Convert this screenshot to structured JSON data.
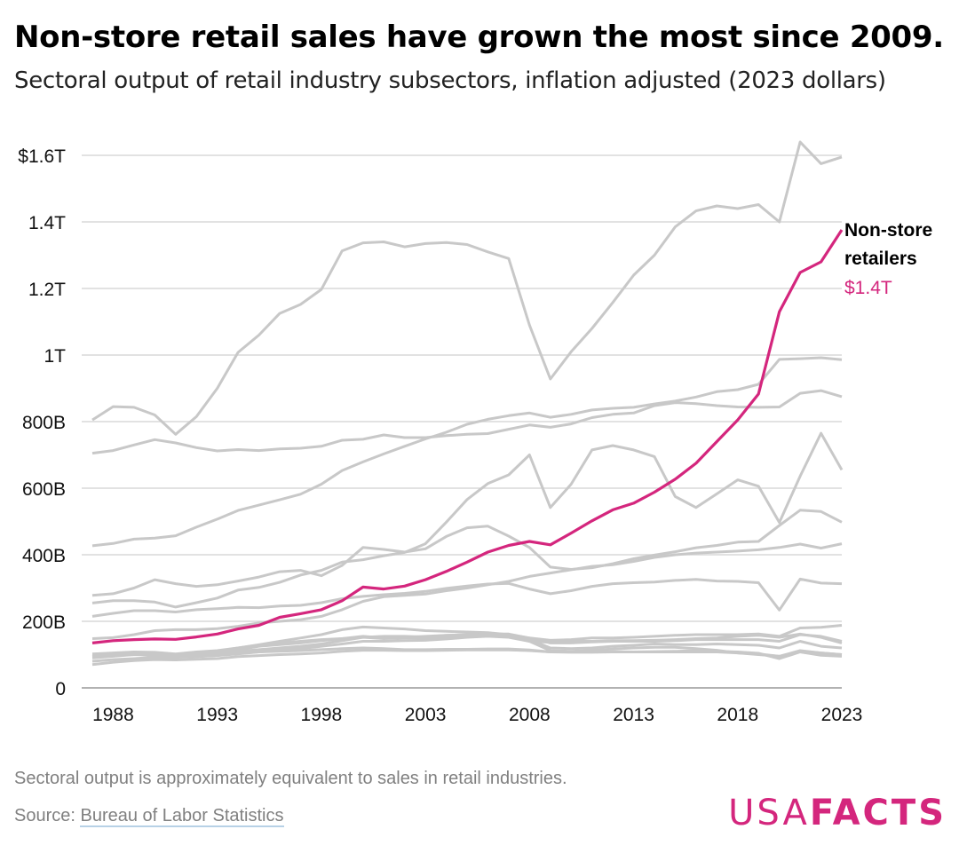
{
  "title": "Non-store retail sales have grown the most since 2009.",
  "subtitle": "Sectoral output of retail industry subsectors, inflation adjusted (2023 dollars)",
  "note": "Sectoral output is approximately equivalent to sales in retail industries.",
  "source_prefix": "Source: ",
  "source_link": "Bureau of Labor Statistics",
  "logo": {
    "light": "USA",
    "bold": "FACTS"
  },
  "annotation": {
    "line1": "Non-store",
    "line2": "retailers",
    "value": "$1.4T"
  },
  "colors": {
    "highlight": "#d4267d",
    "other": "#c8c8c8",
    "grid": "#d9d9d9"
  },
  "chart_data": {
    "type": "line",
    "ylim": [
      0,
      1600
    ],
    "y_unit": "billions of 2023 dollars",
    "yticks": [
      {
        "v": 0,
        "label": "0"
      },
      {
        "v": 200,
        "label": "200B"
      },
      {
        "v": 400,
        "label": "400B"
      },
      {
        "v": 600,
        "label": "600B"
      },
      {
        "v": 800,
        "label": "800B"
      },
      {
        "v": 1000,
        "label": "1T"
      },
      {
        "v": 1200,
        "label": "1.2T"
      },
      {
        "v": 1400,
        "label": "1.4T"
      },
      {
        "v": 1600,
        "label": "$1.6T"
      }
    ],
    "xticks": [
      "1988",
      "1993",
      "1998",
      "2003",
      "2008",
      "2013",
      "2018",
      "2023"
    ],
    "x": [
      1987,
      1988,
      1989,
      1990,
      1991,
      1992,
      1993,
      1994,
      1995,
      1996,
      1997,
      1998,
      1999,
      2000,
      2001,
      2002,
      2003,
      2004,
      2005,
      2006,
      2007,
      2008,
      2009,
      2010,
      2011,
      2012,
      2013,
      2014,
      2015,
      2016,
      2017,
      2018,
      2019,
      2020,
      2021,
      2022,
      2023
    ],
    "highlight": {
      "name": "Non-store retailers",
      "values": [
        135,
        142,
        145,
        147,
        146,
        153,
        162,
        177,
        188,
        212,
        223,
        235,
        262,
        303,
        297,
        306,
        325,
        350,
        378,
        408,
        428,
        440,
        430,
        465,
        502,
        535,
        555,
        588,
        627,
        675,
        740,
        805,
        883,
        1130,
        1248,
        1280,
        1376
      ]
    },
    "series": [
      {
        "values": [
          805,
          845,
          843,
          820,
          762,
          815,
          900,
          1008,
          1060,
          1125,
          1152,
          1197,
          1313,
          1337,
          1340,
          1325,
          1335,
          1338,
          1332,
          1310,
          1290,
          1090,
          928,
          1010,
          1080,
          1158,
          1240,
          1300,
          1385,
          1433,
          1448,
          1440,
          1452,
          1400,
          1640,
          1575,
          1595
        ]
      },
      {
        "values": [
          705,
          713,
          730,
          746,
          736,
          722,
          712,
          716,
          713,
          718,
          720,
          726,
          744,
          747,
          760,
          752,
          752,
          758,
          762,
          764,
          777,
          790,
          783,
          793,
          812,
          822,
          826,
          848,
          857,
          854,
          848,
          844,
          843,
          844,
          885,
          893,
          875
        ]
      },
      {
        "values": [
          427,
          434,
          447,
          450,
          457,
          483,
          507,
          533,
          549,
          565,
          582,
          612,
          653,
          679,
          703,
          726,
          748,
          768,
          792,
          807,
          818,
          826,
          813,
          822,
          835,
          840,
          843,
          853,
          862,
          874,
          890,
          896,
          912,
          987,
          989,
          992,
          986
        ]
      },
      {
        "values": [
          255,
          262,
          262,
          258,
          243,
          256,
          270,
          294,
          302,
          317,
          339,
          353,
          378,
          385,
          397,
          407,
          433,
          498,
          566,
          614,
          640,
          700,
          542,
          612,
          715,
          728,
          715,
          695,
          575,
          542,
          583,
          625,
          606,
          497,
          636,
          765,
          655
        ]
      },
      {
        "values": [
          278,
          283,
          300,
          325,
          313,
          305,
          310,
          321,
          333,
          349,
          353,
          337,
          368,
          422,
          416,
          408,
          418,
          455,
          481,
          486,
          456,
          422,
          363,
          356,
          361,
          373,
          388,
          399,
          409,
          421,
          428,
          438,
          440,
          488,
          534,
          530,
          498
        ]
      },
      {
        "values": [
          215,
          224,
          232,
          232,
          228,
          235,
          238,
          242,
          241,
          246,
          248,
          256,
          268,
          275,
          280,
          284,
          290,
          299,
          306,
          312,
          314,
          297,
          283,
          292,
          305,
          313,
          316,
          318,
          323,
          326,
          321,
          320,
          316,
          234,
          327,
          315,
          313
        ]
      },
      {
        "values": [
          95,
          100,
          105,
          105,
          100,
          105,
          110,
          120,
          130,
          140,
          150,
          160,
          175,
          183,
          180,
          177,
          172,
          170,
          168,
          166,
          160,
          150,
          143,
          145,
          150,
          150,
          152,
          155,
          158,
          160,
          160,
          160,
          162,
          155,
          180,
          182,
          188
        ]
      },
      {
        "values": [
          148,
          151,
          160,
          172,
          175,
          175,
          178,
          185,
          195,
          200,
          205,
          215,
          235,
          260,
          274,
          278,
          282,
          292,
          300,
          310,
          320,
          335,
          345,
          355,
          365,
          370,
          380,
          392,
          400,
          405,
          408,
          411,
          415,
          422,
          432,
          420,
          433
        ]
      },
      {
        "values": [
          90,
          95,
          100,
          100,
          98,
          100,
          105,
          115,
          125,
          130,
          135,
          142,
          148,
          152,
          155,
          155,
          153,
          158,
          160,
          160,
          158,
          140,
          137,
          140,
          140,
          142,
          142,
          143,
          145,
          148,
          150,
          155,
          158,
          152,
          162,
          152,
          135
        ]
      },
      {
        "values": [
          102,
          105,
          108,
          107,
          102,
          108,
          112,
          120,
          128,
          135,
          140,
          145,
          148,
          155,
          150,
          152,
          155,
          158,
          160,
          162,
          162,
          150,
          135,
          135,
          138,
          140,
          140,
          140,
          142,
          145,
          145,
          145,
          145,
          140,
          160,
          155,
          140
        ]
      },
      {
        "values": [
          95,
          98,
          100,
          98,
          92,
          96,
          100,
          110,
          115,
          120,
          125,
          132,
          142,
          152,
          148,
          150,
          150,
          153,
          158,
          160,
          158,
          145,
          120,
          118,
          120,
          125,
          128,
          132,
          130,
          130,
          132,
          130,
          128,
          120,
          140,
          125,
          120
        ]
      },
      {
        "values": [
          80,
          85,
          88,
          92,
          92,
          94,
          97,
          102,
          108,
          113,
          118,
          125,
          132,
          140,
          140,
          142,
          143,
          147,
          152,
          155,
          152,
          140,
          112,
          110,
          113,
          117,
          120,
          122,
          122,
          118,
          113,
          105,
          100,
          95,
          110,
          105,
          100
        ]
      },
      {
        "values": [
          70,
          77,
          82,
          85,
          84,
          86,
          88,
          94,
          97,
          100,
          102,
          105,
          110,
          113,
          113,
          112,
          112,
          113,
          114,
          114,
          114,
          112,
          108,
          107,
          107,
          108,
          108,
          108,
          108,
          108,
          108,
          105,
          102,
          95,
          112,
          105,
          100
        ]
      },
      {
        "values": [
          100,
          100,
          102,
          97,
          92,
          94,
          98,
          104,
          108,
          110,
          112,
          115,
          118,
          120,
          118,
          115,
          115,
          116,
          116,
          117,
          117,
          114,
          108,
          108,
          108,
          109,
          108,
          109,
          110,
          112,
          110,
          108,
          104,
          88,
          108,
          98,
          95
        ]
      }
    ]
  }
}
